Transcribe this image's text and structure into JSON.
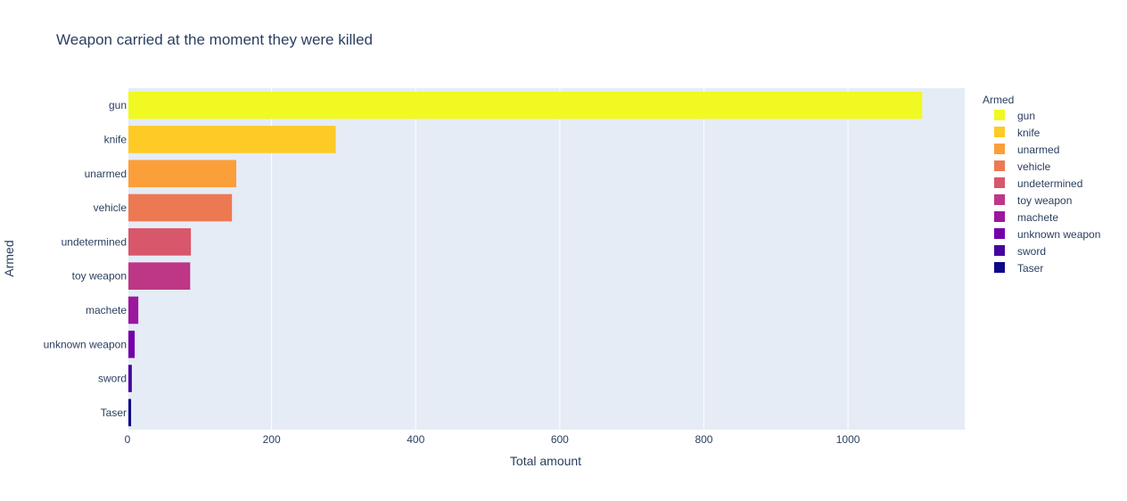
{
  "chart_data": {
    "type": "bar",
    "orientation": "horizontal",
    "title": "Weapon carried at the moment they were killed",
    "xlabel": "Total amount",
    "ylabel": "Armed",
    "legend_title": "Armed",
    "legend_position": "right",
    "grid": true,
    "xlim": [
      0,
      1162
    ],
    "x_ticks": [
      0,
      200,
      400,
      600,
      800,
      1000
    ],
    "categories": [
      "gun",
      "knife",
      "unarmed",
      "vehicle",
      "undetermined",
      "toy weapon",
      "machete",
      "unknown weapon",
      "sword",
      "Taser"
    ],
    "values": [
      1103,
      289,
      151,
      145,
      88,
      87,
      15,
      10,
      6,
      5
    ],
    "colors": [
      "#f0f921",
      "#fdca26",
      "#fb9f3a",
      "#ed7953",
      "#d8576b",
      "#bd3786",
      "#9c179e",
      "#7201a8",
      "#46039f",
      "#0d0887"
    ]
  },
  "colors": {
    "plot_background": "#e5ecf6",
    "gridline": "#ffffff",
    "text": "#2a3f5f"
  }
}
